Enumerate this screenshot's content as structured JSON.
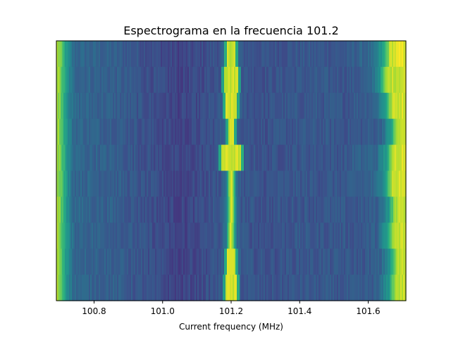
{
  "chart_data": {
    "type": "heatmap",
    "title": "Espectrograma en la frecuencia 101.2",
    "xlabel": "Current frequency (MHz)",
    "ylabel": "",
    "xlim": [
      100.69,
      101.71
    ],
    "xticks": [
      100.8,
      101.0,
      101.2,
      101.4,
      101.6
    ],
    "xtick_labels": [
      "100.8",
      "101.0",
      "101.2",
      "101.4",
      "101.6"
    ],
    "y_ticks_visible": false,
    "grid": false,
    "colormap": "viridis",
    "color_range": [
      0.45,
      1.0
    ],
    "row_count": 10,
    "profile_mhz": [
      100.69,
      100.7,
      100.72,
      100.74,
      100.78,
      100.85,
      100.95,
      101.05,
      101.12,
      101.17,
      101.185,
      101.195,
      101.205,
      101.215,
      101.23,
      101.3,
      101.4,
      101.5,
      101.58,
      101.63,
      101.66,
      101.68,
      101.71
    ],
    "profile_level": [
      0.94,
      0.9,
      0.74,
      0.64,
      0.63,
      0.62,
      0.59,
      0.56,
      0.58,
      0.6,
      0.66,
      0.9,
      0.9,
      0.66,
      0.6,
      0.59,
      0.6,
      0.6,
      0.6,
      0.62,
      0.75,
      0.94,
      0.96
    ],
    "rows": [
      {
        "peak_halfwidth_mhz": 0.012,
        "edge_shift_mhz": -0.015,
        "edge_boost": 0.02
      },
      {
        "peak_halfwidth_mhz": 0.022,
        "edge_shift_mhz": -0.025,
        "edge_boost": 0.0
      },
      {
        "peak_halfwidth_mhz": 0.016,
        "edge_shift_mhz": -0.01,
        "edge_boost": 0.01
      },
      {
        "peak_halfwidth_mhz": 0.01,
        "edge_shift_mhz": 0.005,
        "edge_boost": 0.0
      },
      {
        "peak_halfwidth_mhz": 0.03,
        "edge_shift_mhz": -0.005,
        "edge_boost": 0.02
      },
      {
        "peak_halfwidth_mhz": 0.004,
        "edge_shift_mhz": -0.01,
        "edge_boost": 0.01
      },
      {
        "peak_halfwidth_mhz": 0.004,
        "edge_shift_mhz": 0.0,
        "edge_boost": 0.0
      },
      {
        "peak_halfwidth_mhz": 0.004,
        "edge_shift_mhz": -0.005,
        "edge_boost": 0.0
      },
      {
        "peak_halfwidth_mhz": 0.012,
        "edge_shift_mhz": 0.005,
        "edge_boost": 0.0
      },
      {
        "peak_halfwidth_mhz": 0.016,
        "edge_shift_mhz": 0.0,
        "edge_boost": 0.0
      }
    ]
  }
}
